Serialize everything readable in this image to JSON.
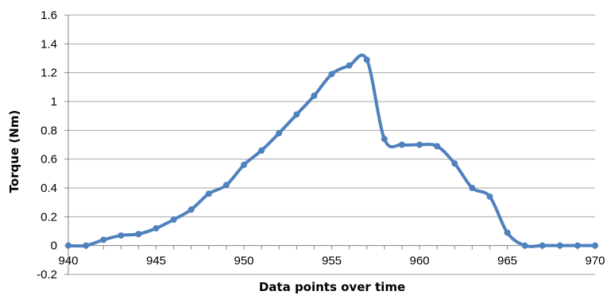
{
  "chart_data": {
    "type": "line",
    "title": "",
    "xlabel": "Data points over time",
    "ylabel": "Torque (Nm)",
    "xlim": [
      940,
      970
    ],
    "ylim": [
      -0.2,
      1.6
    ],
    "xticks": [
      940,
      945,
      950,
      955,
      960,
      965,
      970
    ],
    "yticks": [
      -0.2,
      0,
      0.2,
      0.4,
      0.6,
      0.8,
      1,
      1.2,
      1.4,
      1.6
    ],
    "ytick_labels": [
      "-0.2",
      "0",
      "0.2",
      "0.4",
      "0.6",
      "0.8",
      "1",
      "1.2",
      "1.4",
      "1.6"
    ],
    "grid": "horizontal",
    "legend": "none",
    "smooth": true,
    "series": [
      {
        "color": "#4f81bd",
        "x": [
          940,
          941,
          942,
          943,
          944,
          945,
          946,
          947,
          948,
          949,
          950,
          951,
          952,
          953,
          954,
          955,
          956,
          957,
          958,
          959,
          960,
          961,
          962,
          963,
          964,
          965,
          966,
          967,
          968,
          969,
          970
        ],
        "y": [
          0.0,
          0.0,
          0.04,
          0.07,
          0.08,
          0.12,
          0.18,
          0.25,
          0.36,
          0.42,
          0.56,
          0.66,
          0.78,
          0.91,
          1.04,
          1.19,
          1.25,
          1.29,
          0.74,
          0.7,
          0.7,
          0.69,
          0.57,
          0.4,
          0.34,
          0.09,
          0.0,
          0.0,
          0.0,
          0.0,
          0.0
        ]
      }
    ]
  }
}
